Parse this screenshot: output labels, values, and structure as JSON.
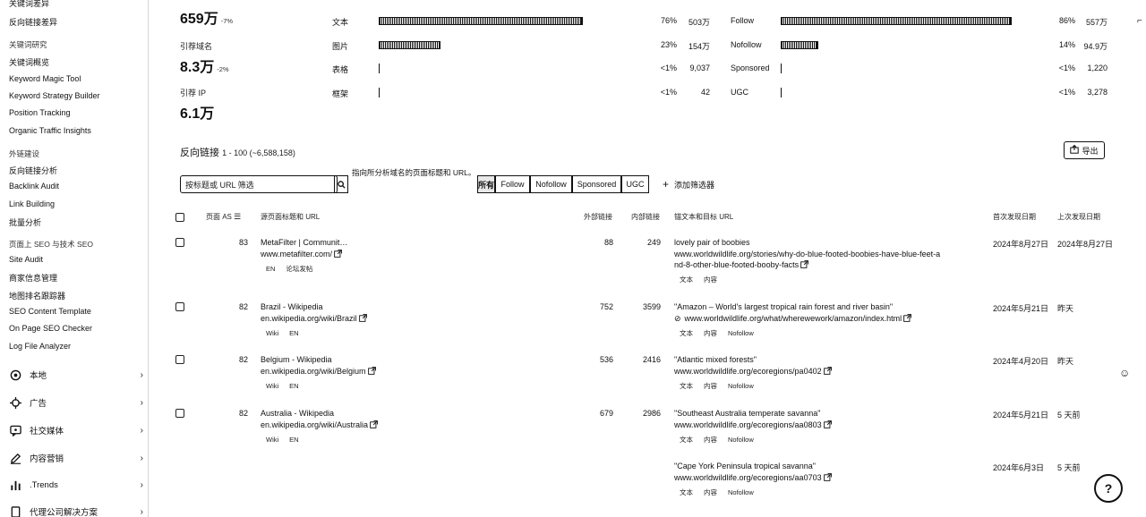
{
  "sidebar": {
    "top_items": [
      {
        "label": "关键词差异",
        "class": "sb-cut"
      },
      {
        "label": "反向链接差异"
      }
    ],
    "section_keywords": {
      "heading": "关键词研究",
      "items": [
        "关键词概览",
        "Keyword Magic Tool",
        "Keyword Strategy Builder",
        "Position Tracking",
        "Organic Traffic Insights"
      ]
    },
    "section_links": {
      "heading": "外链建设",
      "items": [
        "反向链接分析",
        "Backlink Audit",
        "Link Building",
        "批量分析"
      ]
    },
    "section_onpage": {
      "heading": "页面上 SEO 与技术 SEO",
      "items": [
        "Site Audit",
        "商家信息管理",
        "地图排名跟踪器",
        "SEO Content Template",
        "On Page SEO Checker",
        "Log File Analyzer"
      ]
    },
    "main_items": [
      {
        "label": "本地",
        "icon": "location-pin-icon"
      },
      {
        "label": "广告",
        "icon": "target-crosshair-icon"
      },
      {
        "label": "社交媒体",
        "icon": "social-chat-icon"
      },
      {
        "label": "内容营销",
        "icon": "pencil-icon"
      },
      {
        "label": ".Trends",
        "icon": "bar-chart-icon"
      },
      {
        "label": "代理公司解决方案",
        "icon": "document-icon"
      }
    ]
  },
  "metrics": {
    "backlinks": {
      "value": "659万",
      "delta": "-7%"
    },
    "referring_domains": {
      "label": "引荐域名",
      "value": "8.3万",
      "delta": "-2%"
    },
    "referring_ips": {
      "label": "引荐 IP",
      "value": "6.1万"
    }
  },
  "type_distribution": [
    {
      "name": "文本",
      "pct": "76%",
      "count": "503万",
      "share": 0.76
    },
    {
      "name": "图片",
      "pct": "23%",
      "count": "154万",
      "share": 0.23
    },
    {
      "name": "表格",
      "pct": "<1%",
      "count": "9,037",
      "share": 0.004
    },
    {
      "name": "框架",
      "pct": "<1%",
      "count": "42",
      "share": 0.001
    }
  ],
  "attribute_distribution": [
    {
      "name": "Follow",
      "pct": "86%",
      "count": "557万",
      "share": 0.86
    },
    {
      "name": "Nofollow",
      "pct": "14%",
      "count": "94.9万",
      "share": 0.14
    },
    {
      "name": "Sponsored",
      "pct": "<1%",
      "count": "1,220",
      "share": 0.002
    },
    {
      "name": "UGC",
      "pct": "<1%",
      "count": "3,278",
      "share": 0.002
    }
  ],
  "backlinks_section": {
    "title": "反向链接",
    "range": "1 - 100 (~6,588,158)",
    "export_label": "导出"
  },
  "filters": {
    "search_placeholder": "按标题或 URL 筛选",
    "hint": "指向所分析域名的页面标题和 URL。",
    "segments": [
      "所有",
      "Follow",
      "Nofollow",
      "Sponsored",
      "UGC"
    ],
    "add_filter": "添加筛选器"
  },
  "table": {
    "headers": {
      "page_as": "页面 AS",
      "source": "源页面标题和 URL",
      "ext_links": "外部链接",
      "int_links": "内部链接",
      "anchor": "锚文本和目标 URL",
      "first_seen": "首次发现日期",
      "last_seen": "上次发现日期"
    },
    "rows": [
      {
        "as": "83",
        "title": "MetaFilter | Communit…",
        "url": "www.metafilter.com/",
        "tags": [
          "EN",
          "论坛发帖"
        ],
        "ext": "88",
        "int": "249",
        "anchor": "lovely pair of boobies",
        "target_line1": "www.worldwildlife.org/stories/why-do-blue-footed-boobies-have-blue-feet-a",
        "target_line2": "nd-8-other-blue-footed-booby-facts",
        "target_tags": [
          "文本",
          "内容"
        ],
        "first": "2024年8月27日",
        "last": "2024年8月27日"
      },
      {
        "as": "82",
        "title": "Brazil - Wikipedia",
        "url": "en.wikipedia.org/wiki/Brazil",
        "tags": [
          "Wiki",
          "EN"
        ],
        "ext": "752",
        "int": "3599",
        "anchor": "\"Amazon – World's largest tropical rain forest and river basin\"",
        "target_line1": "www.worldwildlife.org/what/wherewework/amazon/index.html",
        "target_tags": [
          "文本",
          "内容",
          "Nofollow"
        ],
        "first": "2024年5月21日",
        "last": "昨天"
      },
      {
        "as": "82",
        "title": "Belgium - Wikipedia",
        "url": "en.wikipedia.org/wiki/Belgium",
        "tags": [
          "Wiki",
          "EN"
        ],
        "ext": "536",
        "int": "2416",
        "anchor": "\"Atlantic mixed forests\"",
        "target_line1": "www.worldwildlife.org/ecoregions/pa0402",
        "target_tags": [
          "文本",
          "内容",
          "Nofollow"
        ],
        "first": "2024年4月20日",
        "last": "昨天"
      },
      {
        "as": "82",
        "title": "Australia - Wikipedia",
        "url": "en.wikipedia.org/wiki/Australia",
        "tags": [
          "Wiki",
          "EN"
        ],
        "ext": "679",
        "int": "2986",
        "anchor": "\"Southeast Australia temperate savanna\"",
        "target_line1": "www.worldwildlife.org/ecoregions/aa0803",
        "target_tags": [
          "文本",
          "内容",
          "Nofollow"
        ],
        "first": "2024年5月21日",
        "last": "5 天前"
      },
      {
        "anchor": "\"Cape York Peninsula tropical savanna\"",
        "target_line1": "www.worldwildlife.org/ecoregions/aa0703",
        "target_tags": [
          "文本",
          "内容",
          "Nofollow"
        ],
        "first": "2024年6月3日",
        "last": "5 天前"
      }
    ]
  }
}
